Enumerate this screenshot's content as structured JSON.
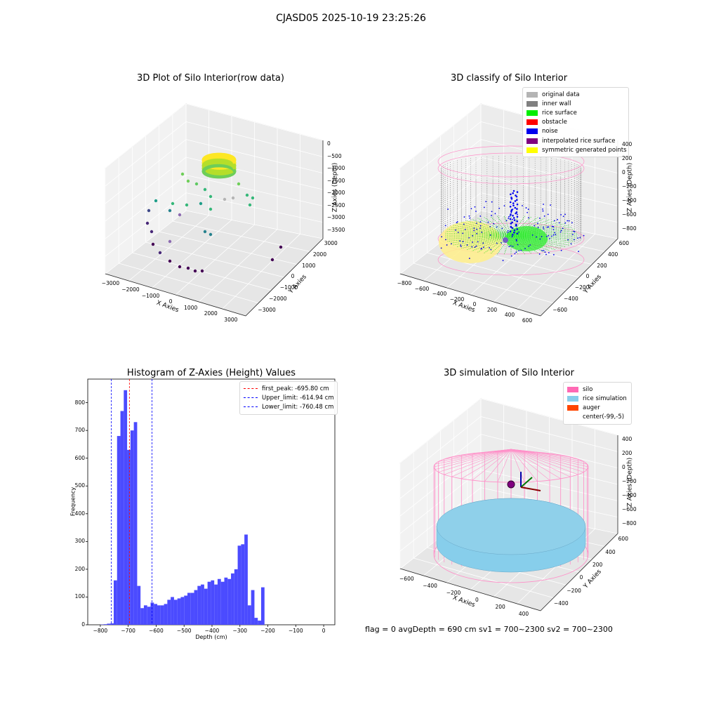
{
  "suptitle": "CJASD05 2025-10-19 23:25:26",
  "footer": "flag = 0     avgDepth = 690 cm  sv1 = 700~2300  sv2 = 700~2300",
  "colors": {
    "hist_bar": "#4b4bff",
    "peak_line": "#ff0000",
    "limit_line": "#0000ff",
    "original_data": "#b4b4b4",
    "inner_wall": "#808080",
    "rice_surface": "#00ee00",
    "obstacle": "#ff0000",
    "noise": "#0000ee",
    "interpolated": "#800080",
    "symmetric": "#ffff00",
    "silo": "#ff69b4",
    "rice_sim": "#87ceeb",
    "auger": "#ff4500"
  },
  "chart_data": [
    {
      "type": "scatter",
      "projection": "3d",
      "title": "3D Plot of Silo Interior(row data)",
      "xlabel": "X Axies",
      "ylabel": "Y Axies",
      "zlabel": "Z Axies (Depth)",
      "xticks": [
        "−3000",
        "−2000",
        "−1000",
        "0",
        "1000",
        "2000",
        "3000"
      ],
      "yticks": [
        "−3000",
        "−2000",
        "−1000",
        "0",
        "1000",
        "2000",
        "3000"
      ],
      "zticks": [
        "0",
        "−500",
        "−1000",
        "−1500",
        "−2000",
        "−2500",
        "−3000",
        "−3500"
      ],
      "colormap": "viridis"
    },
    {
      "type": "scatter",
      "projection": "3d",
      "title": "3D classify of Silo Interior",
      "xlabel": "X Axies",
      "ylabel": "Y Axies",
      "zlabel": "Z Axies (Depth)",
      "xticks": [
        "−800",
        "−600",
        "−400",
        "−200",
        "0",
        "200",
        "400",
        "600"
      ],
      "yticks": [
        "−600",
        "−400",
        "−200",
        "0",
        "200",
        "400",
        "600"
      ],
      "zticks": [
        "400",
        "200",
        "0",
        "−200",
        "−400",
        "−600",
        "−800"
      ],
      "legend": [
        {
          "label": "original data",
          "color": "#b4b4b4"
        },
        {
          "label": "inner wall",
          "color": "#808080"
        },
        {
          "label": "rice surface",
          "color": "#00ee00"
        },
        {
          "label": "obstacle",
          "color": "#ff0000"
        },
        {
          "label": "noise",
          "color": "#0000ee"
        },
        {
          "label": "interpolated rice surface",
          "color": "#800080"
        },
        {
          "label": "symmetric generated points",
          "color": "#ffff00"
        }
      ],
      "legend_position": "top-right"
    },
    {
      "type": "bar",
      "title": "Histogram of Z-Axies (Height) Values",
      "xlabel": "Depth (cm)",
      "ylabel": "Frequency",
      "xlim": [
        -845,
        40
      ],
      "ylim": [
        0,
        885
      ],
      "xticks": [
        -800,
        -700,
        -600,
        -500,
        -400,
        -300,
        -200,
        -100,
        0
      ],
      "yticks": [
        0,
        100,
        200,
        300,
        400,
        500,
        600,
        700,
        800
      ],
      "bin_start": -800,
      "bin_width": 12,
      "values": [
        1,
        2,
        4,
        5,
        160,
        680,
        770,
        845,
        630,
        700,
        730,
        140,
        60,
        70,
        65,
        80,
        75,
        70,
        70,
        75,
        90,
        100,
        90,
        95,
        100,
        105,
        115,
        115,
        125,
        140,
        145,
        130,
        155,
        160,
        145,
        165,
        155,
        170,
        165,
        185,
        200,
        285,
        290,
        325,
        70,
        125,
        25,
        15,
        135
      ],
      "vlines": [
        {
          "label": "first_peak: -695.80 cm",
          "x": -695.8,
          "color": "#ff0000"
        },
        {
          "label": "Upper_limit: -614.94 cm",
          "x": -614.94,
          "color": "#0000ff"
        },
        {
          "label": "Lower_limit: -760.48 cm",
          "x": -760.48,
          "color": "#0000ff"
        }
      ],
      "legend_position": "top-right",
      "grid": false
    },
    {
      "type": "scatter",
      "projection": "3d",
      "title": "3D simulation of Silo Interior",
      "xlabel": "X Axies",
      "ylabel": "Y Axies",
      "zlabel": "Z Axies (Depth)",
      "xticks": [
        "−600",
        "−400",
        "−200",
        "0",
        "200",
        "400"
      ],
      "yticks": [
        "−400",
        "−200",
        "0",
        "200",
        "400",
        "600"
      ],
      "zticks": [
        "400",
        "200",
        "0",
        "−200",
        "−400",
        "−600",
        "−800"
      ],
      "legend": [
        {
          "label": "silo",
          "color": "#ff69b4"
        },
        {
          "label": "rice simulation",
          "color": "#87ceeb"
        },
        {
          "label": "auger",
          "color": "#ff4500"
        },
        {
          "label": "center(-99,-5)",
          "color": ""
        }
      ],
      "legend_position": "top-right"
    }
  ]
}
